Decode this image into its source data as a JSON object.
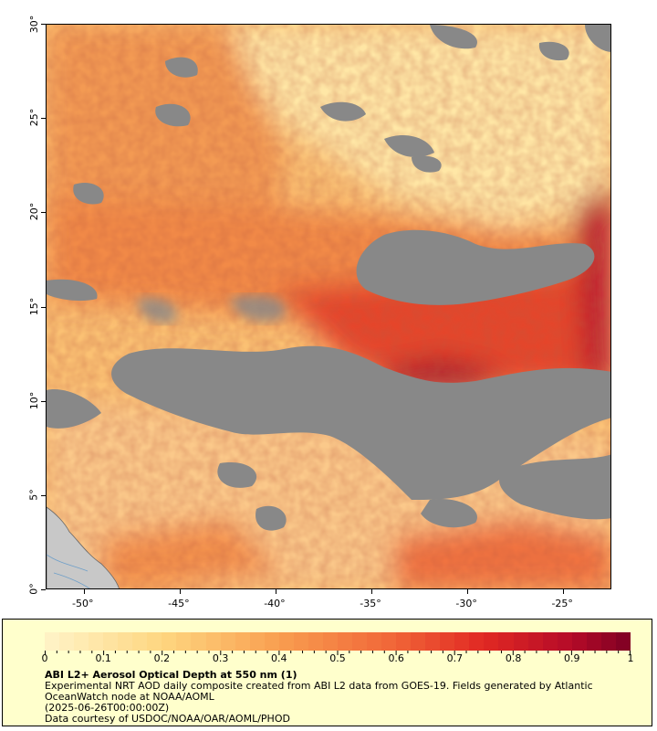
{
  "map": {
    "lon_labels": [
      "-50°",
      "-45°",
      "-40°",
      "-35°",
      "-30°",
      "-25°"
    ],
    "lat_labels": [
      "0°",
      "5°",
      "10°",
      "15°",
      "20°",
      "25°",
      "30°"
    ],
    "lon_range": [
      -52,
      -22.5
    ],
    "lat_range": [
      0,
      30
    ],
    "colors": {
      "no_data": "#888888",
      "land": "#c8c8c8",
      "low": "#ffe49a",
      "mid": "#f8a35a",
      "high": "#e8402c",
      "very_high": "#8b0021"
    }
  },
  "legend": {
    "tick_labels": [
      "0",
      "0.1",
      "0.2",
      "0.3",
      "0.4",
      "0.5",
      "0.6",
      "0.7",
      "0.8",
      "0.9",
      "1"
    ],
    "title": "ABI L2+ Aerosol Optical Depth at 550 nm (1)",
    "line1": "Experimental NRT AOD daily composite created from ABI L2 data from GOES-19. Fields generated by Atlantic OceanWatch node at NOAA/AOML",
    "line2": "(2025-06-26T00:00:00Z)",
    "line3": "Data courtesy of USDOC/NOAA/OAR/AOML/PHOD"
  }
}
